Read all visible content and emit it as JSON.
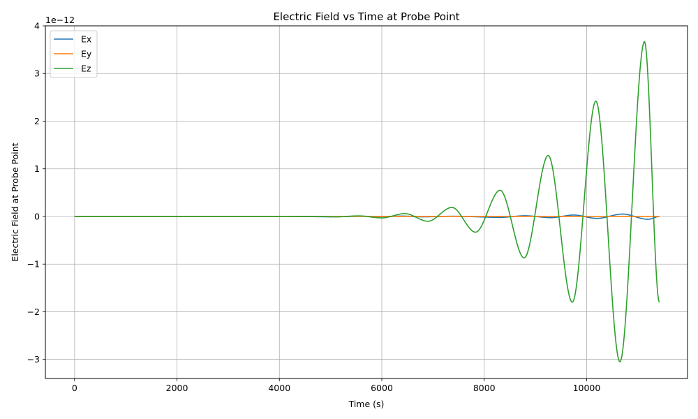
{
  "chart_data": {
    "type": "line",
    "title": "Electric Field vs Time at Probe Point",
    "xlabel": "Time (s)",
    "ylabel": "Electric Field at Probe Point",
    "offset_label": "1e−12",
    "xlim": [
      -570,
      11970
    ],
    "ylim": [
      -3.4,
      4.0
    ],
    "xticks": [
      0,
      2000,
      4000,
      6000,
      8000,
      10000
    ],
    "xtick_labels": [
      "0",
      "2000",
      "4000",
      "6000",
      "8000",
      "10000"
    ],
    "yticks": [
      -3,
      -2,
      -1,
      0,
      1,
      2,
      3,
      4
    ],
    "ytick_labels": [
      "−3",
      "−2",
      "−1",
      "0",
      "1",
      "2",
      "3",
      "4"
    ],
    "grid": true,
    "legend_position": "top-left",
    "series": [
      {
        "name": "Ex",
        "color": "#1f77b4",
        "x": [
          0,
          4000,
          4800,
          5000,
          5600,
          6000,
          6400,
          6800,
          7400,
          7800,
          8300,
          8800,
          9300,
          9750,
          10200,
          10700,
          11200,
          11420
        ],
        "y": [
          0,
          0,
          -0.005,
          -0.008,
          0.005,
          -0.005,
          0.008,
          -0.008,
          0.005,
          -0.005,
          -0.02,
          0.015,
          -0.025,
          0.03,
          -0.04,
          0.05,
          -0.06,
          0.0
        ]
      },
      {
        "name": "Ey",
        "color": "#ff7f0e",
        "x": [
          0,
          5000,
          6000,
          7000,
          8000,
          9000,
          10000,
          11000,
          11420
        ],
        "y": [
          0,
          0,
          0,
          0,
          0,
          0,
          0,
          0,
          0
        ]
      },
      {
        "name": "Ez",
        "color": "#2ca02c",
        "x": [
          0,
          4000,
          4500,
          4900,
          5100,
          5550,
          6000,
          6450,
          6900,
          7370,
          7830,
          8310,
          8780,
          9250,
          9720,
          10180,
          10650,
          11130,
          11420
        ],
        "y": [
          0,
          0,
          0.001,
          -0.002,
          -0.008,
          0.012,
          -0.03,
          0.06,
          -0.1,
          0.19,
          -0.33,
          0.55,
          -0.87,
          1.28,
          -1.8,
          2.42,
          -3.05,
          3.67,
          -1.8
        ]
      }
    ]
  }
}
